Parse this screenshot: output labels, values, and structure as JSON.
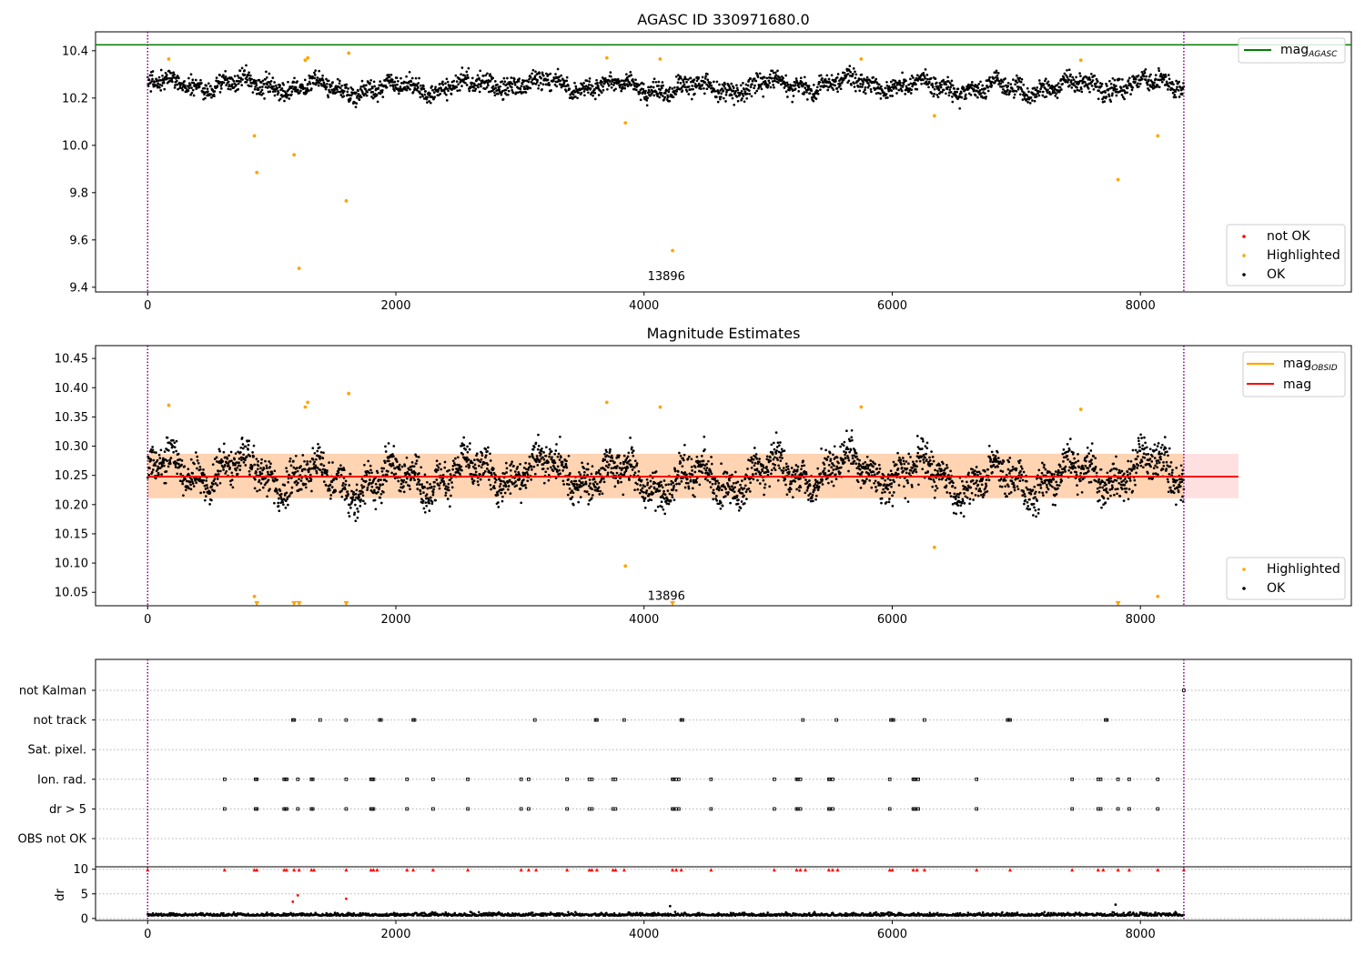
{
  "chart_data": [
    {
      "type": "scatter",
      "title": "AGASC ID 330971680.0",
      "xlim": [
        -420,
        9700
      ],
      "ylim": [
        9.38,
        10.48
      ],
      "x_ticks": [
        0,
        2000,
        4000,
        6000,
        8000
      ],
      "x_tick_labels": [
        "0",
        "2000",
        "4000",
        "6000",
        "8000"
      ],
      "y_ticks": [
        9.4,
        9.6,
        9.8,
        10.0,
        10.2,
        10.4
      ],
      "y_tick_labels": [
        "9.4",
        "9.6",
        "9.8",
        "10.0",
        "10.2",
        "10.4"
      ],
      "vlines": [
        0,
        8350
      ],
      "vline_color": "#800080",
      "hline": {
        "y": 10.425,
        "color": "#008000"
      },
      "annotation": {
        "text": "13896",
        "x": 4180,
        "y": 9.43
      },
      "ok_band": {
        "x_range": [
          0,
          8350
        ],
        "center": 10.25,
        "spread": 0.045
      },
      "highlighted_points": {
        "x": [
          170,
          860,
          880,
          1180,
          1220,
          1270,
          1290,
          1600,
          1620,
          3700,
          3850,
          4130,
          4230,
          5750,
          6340,
          7520,
          7820,
          8140
        ],
        "y": [
          10.365,
          10.04,
          9.885,
          9.96,
          9.48,
          10.36,
          10.37,
          9.765,
          10.39,
          10.37,
          10.095,
          10.365,
          9.555,
          10.365,
          10.125,
          10.36,
          9.855,
          10.04
        ],
        "color": "#ffa500"
      },
      "legend_top": {
        "label": "mag",
        "subscript": "AGASC",
        "color": "#008000"
      },
      "legend_bottom": [
        {
          "label": "not OK",
          "color": "#ff0000"
        },
        {
          "label": "Highlighted",
          "color": "#ffa500"
        },
        {
          "label": "OK",
          "color": "#000000"
        }
      ]
    },
    {
      "type": "scatter",
      "title": "Magnitude Estimates",
      "xlim": [
        -420,
        9700
      ],
      "ylim": [
        10.027,
        10.472
      ],
      "x_ticks": [
        0,
        2000,
        4000,
        6000,
        8000
      ],
      "x_tick_labels": [
        "0",
        "2000",
        "4000",
        "6000",
        "8000"
      ],
      "y_ticks": [
        10.05,
        10.1,
        10.15,
        10.2,
        10.25,
        10.3,
        10.35,
        10.4,
        10.45
      ],
      "y_tick_labels": [
        "10.05",
        "10.10",
        "10.15",
        "10.20",
        "10.25",
        "10.30",
        "10.35",
        "10.40",
        "10.45"
      ],
      "vlines": [
        0,
        8350
      ],
      "vline_color": "#800080",
      "mag_line": {
        "y": 10.248,
        "x_range": [
          0,
          8790
        ],
        "color": "#ff0000"
      },
      "mag_band": {
        "y_range": [
          10.211,
          10.287
        ],
        "x_range": [
          0,
          8790
        ],
        "color": "#ff0000",
        "opacity": 0.12
      },
      "obsid_band": {
        "y_range": [
          10.211,
          10.287
        ],
        "x_range": [
          0,
          8350
        ],
        "color": "#ffa500",
        "opacity": 0.2
      },
      "obsid_line": {
        "y": 10.248,
        "x_range": [
          0,
          8350
        ],
        "color": "#ffa500"
      },
      "annotation": {
        "text": "13896",
        "x": 4180,
        "y": 10.037
      },
      "ok_band": {
        "x_range": [
          0,
          8350
        ],
        "center": 10.25,
        "spread": 0.035
      },
      "highlighted_points": {
        "x": [
          170,
          860,
          1270,
          1290,
          1620,
          3700,
          3850,
          4130,
          5750,
          6340,
          7520,
          8140
        ],
        "y": [
          10.37,
          10.043,
          10.367,
          10.375,
          10.39,
          10.375,
          10.095,
          10.367,
          10.367,
          10.127,
          10.363,
          10.043
        ],
        "color": "#ffa500"
      },
      "lower_markers": {
        "x": [
          880,
          1180,
          1220,
          1600,
          4230,
          7820
        ],
        "y": 10.031,
        "color": "#ffa500"
      },
      "legend_top": [
        {
          "label": "mag",
          "subscript": "OBSID",
          "color": "#ffa500"
        },
        {
          "label": "mag",
          "subscript": "",
          "color": "#ff0000"
        }
      ],
      "legend_bottom": [
        {
          "label": "Highlighted",
          "color": "#ffa500"
        },
        {
          "label": "OK",
          "color": "#000000"
        }
      ]
    },
    {
      "type": "scatter",
      "xlim": [
        -420,
        9700
      ],
      "categories": [
        "not Kalman",
        "not track",
        "Sat. pixel.",
        "Ion. rad.",
        "dr > 5",
        "OBS not OK"
      ],
      "vlines": [
        0,
        8350
      ],
      "vline_color": "#800080",
      "flag_points": {
        "not Kalman": [
          8350
        ],
        "not track": [
          1170,
          1180,
          1390,
          1600,
          1870,
          1880,
          2140,
          2150,
          3120,
          3610,
          3620,
          3840,
          4300,
          4310,
          5280,
          5550,
          5990,
          6000,
          6010,
          6260,
          6930,
          6940,
          6950,
          7720,
          7730
        ],
        "Sat. pixel.": [],
        "Ion. rad.": [
          620,
          870,
          880,
          1100,
          1110,
          1120,
          1210,
          1320,
          1330,
          1600,
          1800,
          1810,
          1820,
          2090,
          2300,
          2580,
          3010,
          3070,
          3380,
          3560,
          3580,
          3750,
          3770,
          4230,
          4240,
          4260,
          4280,
          4540,
          5050,
          5230,
          5240,
          5260,
          5490,
          5500,
          5520,
          5980,
          6170,
          6180,
          6190,
          6210,
          6680,
          7450,
          7660,
          7680,
          7820,
          7910,
          8140
        ],
        "dr > 5": [
          620,
          870,
          880,
          1100,
          1110,
          1120,
          1210,
          1320,
          1330,
          1600,
          1800,
          1810,
          1820,
          2090,
          2300,
          2580,
          3010,
          3070,
          3380,
          3560,
          3580,
          3750,
          3770,
          4230,
          4240,
          4260,
          4280,
          4540,
          5050,
          5230,
          5240,
          5260,
          5490,
          5500,
          5520,
          5980,
          6170,
          6180,
          6190,
          6210,
          6680,
          7450,
          7660,
          7680,
          7820,
          7910,
          8140
        ],
        "OBS not OK": []
      }
    },
    {
      "type": "scatter",
      "xlim": [
        -420,
        9700
      ],
      "ylim": [
        -0.4,
        10.5
      ],
      "ylabel": "dr",
      "x_ticks": [
        0,
        2000,
        4000,
        6000,
        8000
      ],
      "x_tick_labels": [
        "0",
        "2000",
        "4000",
        "6000",
        "8000"
      ],
      "y_ticks": [
        0,
        5,
        10
      ],
      "y_tick_labels": [
        "0",
        "5",
        "10"
      ],
      "vlines": [
        0,
        8350
      ],
      "vline_color": "#800080",
      "clipped_points": {
        "x": [
          0,
          620,
          860,
          880,
          1100,
          1120,
          1180,
          1220,
          1320,
          1340,
          1600,
          1800,
          1820,
          1850,
          2090,
          2140,
          2300,
          2580,
          3010,
          3070,
          3130,
          3380,
          3560,
          3580,
          3620,
          3750,
          3770,
          3840,
          4230,
          4260,
          4300,
          4540,
          5050,
          5230,
          5260,
          5300,
          5490,
          5520,
          5560,
          5980,
          6000,
          6170,
          6200,
          6260,
          6680,
          6950,
          7450,
          7660,
          7700,
          7820,
          7910,
          8140,
          8350
        ],
        "y": 9.9,
        "color": "#ff0000"
      },
      "outlier_points": {
        "x": [
          1170,
          1210,
          1600,
          4210,
          7800
        ],
        "y": [
          3.4,
          4.7,
          4.0,
          2.5,
          2.8
        ],
        "colors": [
          "#ff0000",
          "#ff0000",
          "#ff0000",
          "#000000",
          "#000000"
        ]
      },
      "base_band": {
        "x_range": [
          0,
          8350
        ],
        "center": 0.55,
        "spread": 0.45
      }
    }
  ]
}
